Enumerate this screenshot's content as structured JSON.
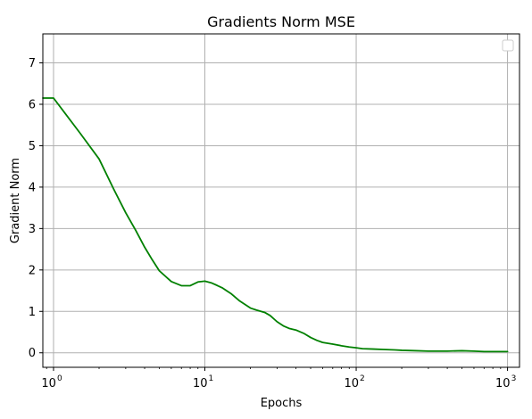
{
  "chart_data": {
    "type": "line",
    "title": "Gradients Norm MSE",
    "xlabel": "Epochs",
    "ylabel": "Gradient Norm",
    "xscale": "log",
    "xlim": [
      0.85,
      1200
    ],
    "ylim": [
      -0.35,
      7.7
    ],
    "grid": true,
    "legend": {
      "placement": "top-right",
      "entries": []
    },
    "x_ticks": [
      {
        "base": "10",
        "exp": "0",
        "value": 1
      },
      {
        "base": "10",
        "exp": "1",
        "value": 10
      },
      {
        "base": "10",
        "exp": "2",
        "value": 100
      },
      {
        "base": "10",
        "exp": "3",
        "value": 1000
      }
    ],
    "y_ticks": [
      "0",
      "1",
      "2",
      "3",
      "4",
      "5",
      "6",
      "7"
    ],
    "series": [
      {
        "color": "#008000",
        "points": [
          [
            0.85,
            6.15
          ],
          [
            1,
            6.15
          ],
          [
            1.5,
            5.3
          ],
          [
            2,
            4.68
          ],
          [
            2.5,
            3.95
          ],
          [
            3,
            3.38
          ],
          [
            3.5,
            2.95
          ],
          [
            4,
            2.55
          ],
          [
            4.5,
            2.24
          ],
          [
            5,
            1.98
          ],
          [
            6,
            1.72
          ],
          [
            7,
            1.62
          ],
          [
            8,
            1.62
          ],
          [
            9,
            1.71
          ],
          [
            10,
            1.73
          ],
          [
            11,
            1.69
          ],
          [
            12,
            1.63
          ],
          [
            13,
            1.57
          ],
          [
            15,
            1.42
          ],
          [
            17,
            1.25
          ],
          [
            20,
            1.08
          ],
          [
            22,
            1.03
          ],
          [
            25,
            0.97
          ],
          [
            27,
            0.9
          ],
          [
            30,
            0.75
          ],
          [
            33,
            0.65
          ],
          [
            36,
            0.59
          ],
          [
            40,
            0.55
          ],
          [
            45,
            0.47
          ],
          [
            50,
            0.37
          ],
          [
            55,
            0.3
          ],
          [
            60,
            0.25
          ],
          [
            70,
            0.21
          ],
          [
            80,
            0.17
          ],
          [
            90,
            0.14
          ],
          [
            100,
            0.12
          ],
          [
            110,
            0.1
          ],
          [
            130,
            0.09
          ],
          [
            150,
            0.08
          ],
          [
            180,
            0.07
          ],
          [
            200,
            0.06
          ],
          [
            250,
            0.05
          ],
          [
            300,
            0.04
          ],
          [
            400,
            0.04
          ],
          [
            500,
            0.05
          ],
          [
            600,
            0.04
          ],
          [
            700,
            0.03
          ],
          [
            800,
            0.03
          ],
          [
            1000,
            0.03
          ]
        ]
      }
    ]
  }
}
